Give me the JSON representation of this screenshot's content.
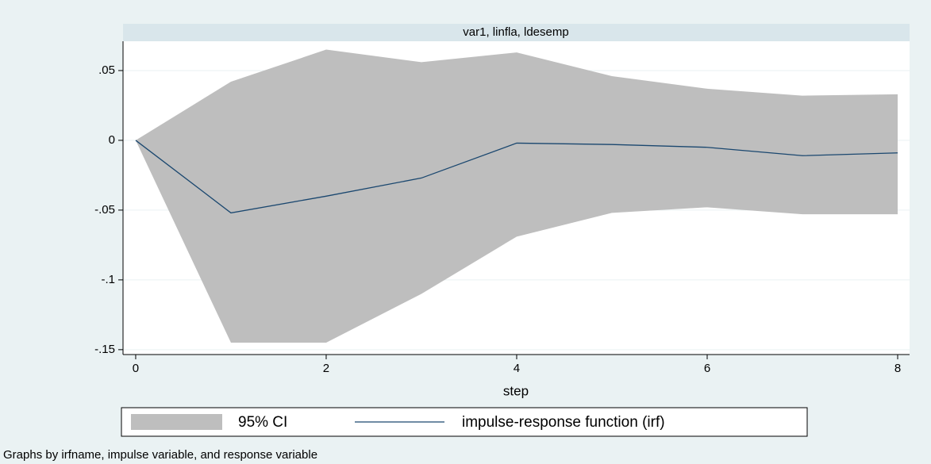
{
  "chart_data": {
    "type": "line",
    "panel_title": "var1, linfla, ldesemp",
    "x_label": "step",
    "note": "Graphs by irfname, impulse variable, and response variable",
    "x": [
      0,
      1,
      2,
      3,
      4,
      5,
      6,
      7,
      8
    ],
    "series": [
      {
        "name": "95% CI",
        "color": "#bebebe",
        "kind": "band",
        "upper": [
          0,
          0.042,
          0.065,
          0.056,
          0.063,
          0.046,
          0.037,
          0.032,
          0.033
        ],
        "lower": [
          0,
          -0.145,
          -0.145,
          -0.11,
          -0.069,
          -0.052,
          -0.048,
          -0.053,
          -0.053
        ]
      },
      {
        "name": "impulse-response function (irf)",
        "color": "#1a476f",
        "kind": "line",
        "values": [
          0,
          -0.052,
          -0.04,
          -0.027,
          -0.002,
          -0.003,
          -0.005,
          -0.011,
          -0.009
        ]
      }
    ],
    "xlim": [
      -0.133,
      8.125
    ],
    "xticks": [
      0,
      2,
      4,
      6,
      8
    ],
    "ylim": [
      -0.1535,
      0.071
    ],
    "yticks": [
      {
        "value": 0.05,
        "label": ".05"
      },
      0,
      {
        "value": -0.05,
        "label": "-.05"
      },
      {
        "value": -0.1,
        "label": "-.1"
      },
      {
        "value": -0.15,
        "label": "-.15"
      }
    ],
    "grid": true
  }
}
